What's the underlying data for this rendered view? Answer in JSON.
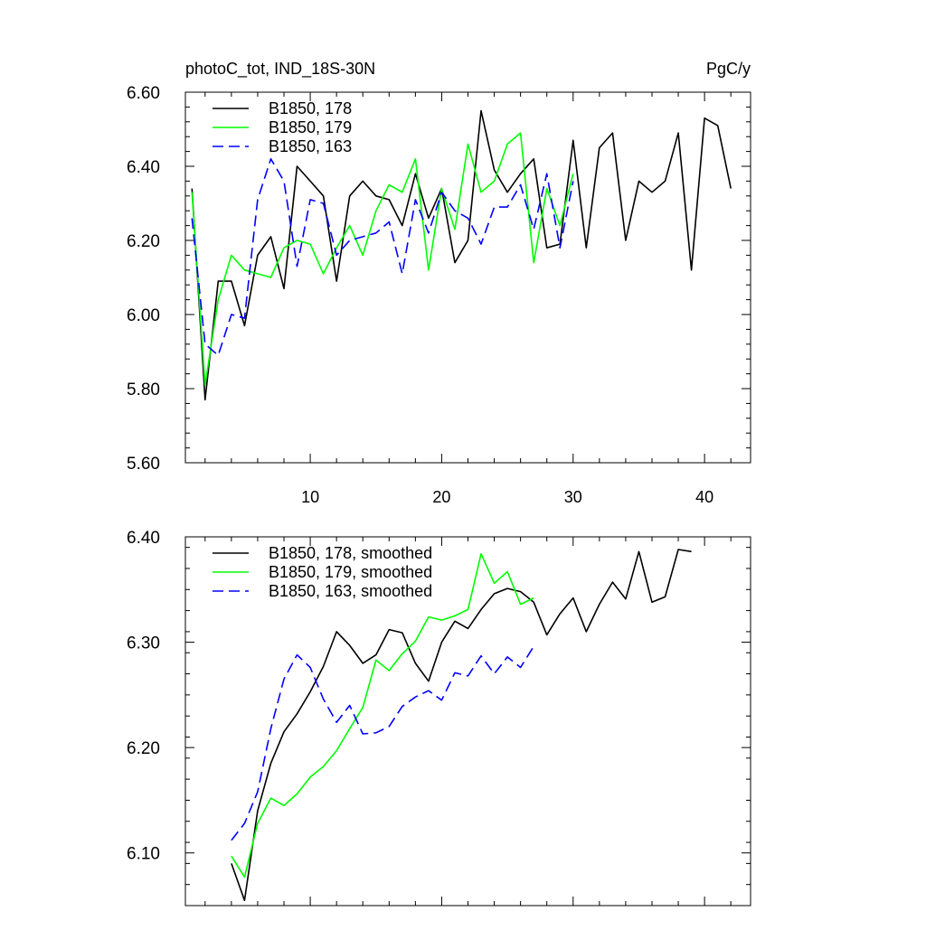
{
  "page": {
    "title_left": "photoC_tot, IND_18S-30N",
    "title_right": "PgC/y"
  },
  "chart_data": [
    {
      "type": "line",
      "title": "photoC_tot, IND_18S-30N",
      "units": "PgC/y",
      "xlim": [
        0.5,
        43.5
      ],
      "ylim": [
        5.6,
        6.6
      ],
      "xticks": [
        10,
        20,
        30,
        40
      ],
      "yticks": [
        5.6,
        5.8,
        6.0,
        6.2,
        6.4,
        6.6
      ],
      "ytick_labels": [
        "5.60",
        "5.80",
        "6.00",
        "6.20",
        "6.40",
        "6.60"
      ],
      "show_xtick_labels": true,
      "legend_position": "top-left",
      "series": [
        {
          "name": "B1850, 178",
          "color": "#000000",
          "dash": "solid",
          "x": [
            1,
            2,
            3,
            4,
            5,
            6,
            7,
            8,
            9,
            10,
            11,
            12,
            13,
            14,
            15,
            16,
            17,
            18,
            19,
            20,
            21,
            22,
            23,
            24,
            25,
            26,
            27,
            28,
            29,
            30,
            31,
            32,
            33,
            34,
            35,
            36,
            37,
            38,
            39,
            40,
            41,
            42,
            43
          ],
          "y": [
            6.34,
            5.77,
            6.09,
            6.09,
            5.97,
            6.16,
            6.21,
            6.07,
            6.4,
            6.36,
            6.32,
            6.09,
            6.32,
            6.36,
            6.32,
            6.31,
            6.24,
            6.38,
            6.26,
            6.34,
            6.14,
            6.2,
            6.55,
            6.39,
            6.33,
            6.38,
            6.42,
            6.18,
            6.19,
            6.47,
            6.18,
            6.45,
            6.49,
            6.2,
            6.36,
            6.33,
            6.36,
            6.49,
            6.12,
            6.53,
            6.51,
            6.34,
            null
          ]
        },
        {
          "name": "B1850, 179",
          "color": "#00ff00",
          "dash": "solid",
          "x": [
            1,
            2,
            3,
            4,
            5,
            6,
            7,
            8,
            9,
            10,
            11,
            12,
            13,
            14,
            15,
            16,
            17,
            18,
            19,
            20,
            21,
            22,
            23,
            24,
            25,
            26,
            27,
            28,
            29,
            30
          ],
          "y": [
            6.33,
            5.81,
            6.04,
            6.16,
            6.12,
            6.11,
            6.1,
            6.18,
            6.2,
            6.19,
            6.11,
            6.18,
            6.24,
            6.16,
            6.28,
            6.35,
            6.33,
            6.42,
            6.12,
            6.34,
            6.23,
            6.46,
            6.33,
            6.36,
            6.46,
            6.49,
            6.14,
            6.34,
            6.24,
            6.38
          ]
        },
        {
          "name": "B1850, 163",
          "color": "#0000ff",
          "dash": "dashed",
          "x": [
            1,
            2,
            3,
            4,
            5,
            6,
            7,
            8,
            9,
            10,
            11,
            12,
            13,
            14,
            15,
            16,
            17,
            18,
            19,
            20,
            21,
            22,
            23,
            24,
            25,
            26,
            27,
            28,
            29,
            30
          ],
          "y": [
            6.26,
            5.92,
            5.89,
            6.0,
            5.99,
            6.31,
            6.42,
            6.36,
            6.13,
            6.31,
            6.3,
            6.16,
            6.2,
            6.21,
            6.22,
            6.25,
            6.11,
            6.31,
            6.22,
            6.33,
            6.28,
            6.26,
            6.19,
            6.29,
            6.29,
            6.35,
            6.23,
            6.38,
            6.18,
            6.36
          ]
        }
      ]
    },
    {
      "type": "line",
      "xlim": [
        0.5,
        43.5
      ],
      "ylim": [
        6.05,
        6.4
      ],
      "xticks": [
        10,
        20,
        30,
        40
      ],
      "yticks": [
        6.1,
        6.2,
        6.3,
        6.4
      ],
      "ytick_labels": [
        "6.10",
        "6.20",
        "6.30",
        "6.40"
      ],
      "show_xtick_labels": false,
      "legend_position": "top-left",
      "series": [
        {
          "name": "B1850, 178, smoothed",
          "color": "#000000",
          "dash": "solid",
          "x": [
            4,
            5,
            6,
            7,
            8,
            9,
            10,
            11,
            12,
            13,
            14,
            15,
            16,
            17,
            18,
            19,
            20,
            21,
            22,
            23,
            24,
            25,
            26,
            27,
            28,
            29,
            30,
            31,
            32,
            33,
            34,
            35,
            36,
            37,
            38,
            39
          ],
          "y": [
            6.09,
            6.055,
            6.14,
            6.185,
            6.215,
            6.232,
            6.253,
            6.277,
            6.31,
            6.297,
            6.28,
            6.288,
            6.312,
            6.309,
            6.28,
            6.263,
            6.3,
            6.32,
            6.313,
            6.331,
            6.346,
            6.351,
            6.348,
            6.338,
            6.307,
            6.327,
            6.342,
            6.31,
            6.336,
            6.357,
            6.341,
            6.386,
            6.338,
            6.343,
            6.388,
            6.386
          ]
        },
        {
          "name": "B1850, 179, smoothed",
          "color": "#00ff00",
          "dash": "solid",
          "x": [
            4,
            5,
            6,
            7,
            8,
            9,
            10,
            11,
            12,
            13,
            14,
            15,
            16,
            17,
            18,
            19,
            20,
            21,
            22,
            23,
            24,
            25,
            26,
            27
          ],
          "y": [
            6.097,
            6.077,
            6.128,
            6.152,
            6.145,
            6.156,
            6.172,
            6.182,
            6.197,
            6.218,
            6.238,
            6.283,
            6.273,
            6.289,
            6.301,
            6.324,
            6.321,
            6.325,
            6.331,
            6.384,
            6.356,
            6.367,
            6.336,
            6.342
          ]
        },
        {
          "name": "B1850, 163, smoothed",
          "color": "#0000ff",
          "dash": "dashed",
          "x": [
            4,
            5,
            6,
            7,
            8,
            9,
            10,
            11,
            12,
            13,
            14,
            15,
            16,
            17,
            18,
            19,
            20,
            21,
            22,
            23,
            24,
            25,
            26,
            27
          ],
          "y": [
            6.112,
            6.128,
            6.158,
            6.218,
            6.265,
            6.288,
            6.276,
            6.246,
            6.224,
            6.24,
            6.213,
            6.214,
            6.22,
            6.239,
            6.248,
            6.254,
            6.245,
            6.271,
            6.268,
            6.287,
            6.27,
            6.286,
            6.276,
            6.296
          ]
        }
      ]
    }
  ]
}
